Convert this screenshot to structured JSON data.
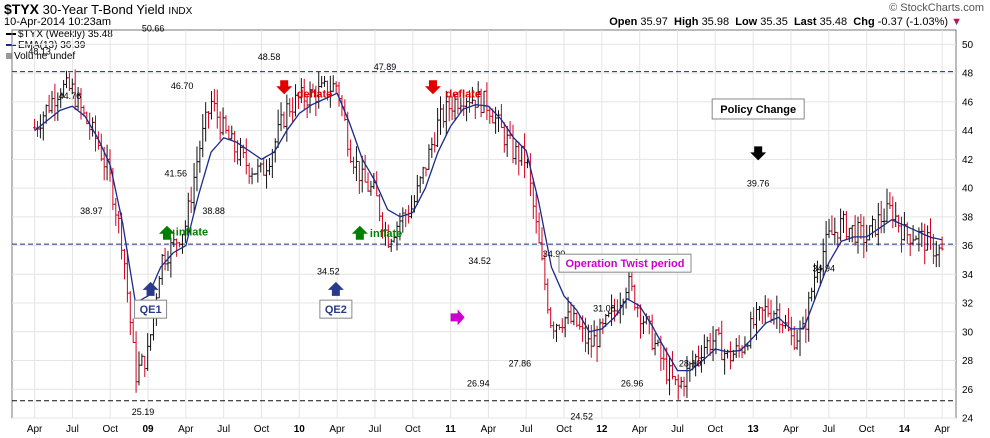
{
  "header": {
    "symbol": "$TYX",
    "description": "30-Year T-Bond Yield",
    "exchange": "INDX",
    "date": "10-Apr-2014 10:23am",
    "copyright": "© StockCharts.com",
    "open_label": "Open",
    "open": "35.97",
    "high_label": "High",
    "high": "35.98",
    "low_label": "Low",
    "low": "35.35",
    "last_label": "Last",
    "last": "35.48",
    "chg_label": "Chg",
    "chg": "-0.37 (-1.03%)"
  },
  "legend": {
    "item1": "$TYX (Weekly) 35.48",
    "item2": "EMA(13) 36.39",
    "item3": "Volume undef"
  },
  "colors": {
    "up": "#111111",
    "down": "#d00020",
    "ema": "#1a2a8a",
    "reference": "#1a2a8a",
    "deflate": "#e00000",
    "inflate": "#008000",
    "qe": "#2a3a8a",
    "twist": "#cc00cc"
  },
  "chart_data": {
    "type": "line",
    "title": "$TYX 30-Year T-Bond Yield INDX",
    "xlabel": "",
    "ylabel": "",
    "ylim": [
      24,
      51
    ],
    "y_ticks": [
      24,
      26,
      28,
      30,
      32,
      34,
      36,
      38,
      40,
      42,
      44,
      46,
      48,
      50
    ],
    "x_ticks": [
      "Apr",
      "Jul",
      "Oct",
      "09",
      "Apr",
      "Jul",
      "Oct",
      "10",
      "Apr",
      "Jul",
      "Oct",
      "11",
      "Apr",
      "Jul",
      "Oct",
      "12",
      "Apr",
      "Jul",
      "Oct",
      "13",
      "Apr",
      "Jul",
      "Oct",
      "14",
      "Apr"
    ],
    "reference_lines": [
      48.1,
      36.1,
      25.2
    ],
    "series": [
      {
        "name": "$TYX (Weekly)",
        "x": [
          "2008-04",
          "2008-06",
          "2008-07",
          "2008-08",
          "2008-09",
          "2008-10",
          "2008-11",
          "2008-12",
          "2009-01",
          "2009-02",
          "2009-03",
          "2009-04",
          "2009-05",
          "2009-06",
          "2009-07",
          "2009-08",
          "2009-09",
          "2009-10",
          "2009-11",
          "2009-12",
          "2010-01",
          "2010-02",
          "2010-03",
          "2010-04",
          "2010-05",
          "2010-06",
          "2010-07",
          "2010-08",
          "2010-09",
          "2010-10",
          "2010-11",
          "2010-12",
          "2011-01",
          "2011-02",
          "2011-03",
          "2011-04",
          "2011-05",
          "2011-06",
          "2011-07",
          "2011-08",
          "2011-09",
          "2011-10",
          "2011-11",
          "2011-12",
          "2012-01",
          "2012-02",
          "2012-03",
          "2012-04",
          "2012-05",
          "2012-06",
          "2012-07",
          "2012-08",
          "2012-09",
          "2012-10",
          "2012-11",
          "2012-12",
          "2013-01",
          "2013-02",
          "2013-03",
          "2013-04",
          "2013-05",
          "2013-06",
          "2013-07",
          "2013-08",
          "2013-09",
          "2013-10",
          "2013-11",
          "2013-12",
          "2014-01",
          "2014-02",
          "2014-03",
          "2014-04"
        ],
        "values": [
          44.2,
          47.0,
          46.8,
          44.8,
          43.2,
          40.6,
          36.0,
          27.0,
          28.5,
          35.0,
          36.0,
          37.5,
          42.5,
          46.0,
          44.0,
          42.5,
          41.5,
          41.0,
          43.0,
          45.5,
          46.2,
          46.5,
          46.8,
          47.2,
          42.8,
          40.5,
          39.6,
          36.5,
          37.8,
          38.7,
          41.5,
          44.5,
          45.8,
          46.5,
          46.2,
          45.8,
          44.0,
          42.5,
          42.0,
          36.0,
          30.5,
          31.0,
          30.5,
          29.0,
          30.0,
          31.5,
          33.5,
          31.5,
          29.5,
          27.5,
          26.0,
          27.5,
          29.0,
          29.5,
          28.2,
          28.8,
          30.5,
          31.5,
          31.5,
          29.5,
          30.0,
          34.5,
          36.5,
          37.5,
          37.0,
          36.5,
          37.8,
          38.5,
          36.8,
          36.8,
          36.0,
          35.5
        ]
      },
      {
        "name": "EMA(13)",
        "x": [
          "2008-04",
          "2008-06",
          "2008-07",
          "2008-08",
          "2008-09",
          "2008-10",
          "2008-11",
          "2008-12",
          "2009-01",
          "2009-02",
          "2009-03",
          "2009-04",
          "2009-05",
          "2009-06",
          "2009-07",
          "2009-08",
          "2009-09",
          "2009-10",
          "2009-11",
          "2009-12",
          "2010-01",
          "2010-02",
          "2010-03",
          "2010-04",
          "2010-05",
          "2010-06",
          "2010-07",
          "2010-08",
          "2010-09",
          "2010-10",
          "2010-11",
          "2010-12",
          "2011-01",
          "2011-02",
          "2011-03",
          "2011-04",
          "2011-05",
          "2011-06",
          "2011-07",
          "2011-08",
          "2011-09",
          "2011-10",
          "2011-11",
          "2011-12",
          "2012-01",
          "2012-02",
          "2012-03",
          "2012-04",
          "2012-05",
          "2012-06",
          "2012-07",
          "2012-08",
          "2012-09",
          "2012-10",
          "2012-11",
          "2012-12",
          "2013-01",
          "2013-02",
          "2013-03",
          "2013-04",
          "2013-05",
          "2013-06",
          "2013-07",
          "2013-08",
          "2013-09",
          "2013-10",
          "2013-11",
          "2013-12",
          "2014-01",
          "2014-02",
          "2014-03",
          "2014-04"
        ],
        "values": [
          44.0,
          45.4,
          45.7,
          45.0,
          43.5,
          41.6,
          37.5,
          32.0,
          32.5,
          34.5,
          35.5,
          36.0,
          39.5,
          42.5,
          43.5,
          43.2,
          42.6,
          42.0,
          42.5,
          44.0,
          45.2,
          45.8,
          46.2,
          46.6,
          44.5,
          42.0,
          40.5,
          38.5,
          38.0,
          38.3,
          40.0,
          42.5,
          44.3,
          45.5,
          45.8,
          45.7,
          44.8,
          43.5,
          42.6,
          39.0,
          34.5,
          32.5,
          31.5,
          30.0,
          30.2,
          31.0,
          32.3,
          31.8,
          30.4,
          28.8,
          27.3,
          27.3,
          28.0,
          28.8,
          28.6,
          28.7,
          29.6,
          30.6,
          31.0,
          30.2,
          30.2,
          32.5,
          34.8,
          36.3,
          36.6,
          36.6,
          37.2,
          37.8,
          37.4,
          37.0,
          36.6,
          36.4
        ]
      }
    ],
    "data_labels": [
      "48.13",
      "44.76",
      "38.97",
      "25.19",
      "50.66",
      "46.70",
      "41.56",
      "38.88",
      "48.58",
      "34.52",
      "47.89",
      "34.52",
      "26.94",
      "27.86",
      "34.90",
      "24.52",
      "31.08",
      "26.96",
      "28.10",
      "39.76",
      "34.94"
    ],
    "annotations": [
      {
        "text": "deflate",
        "kind": "deflate"
      },
      {
        "text": "deflate",
        "kind": "deflate"
      },
      {
        "text": "inflate",
        "kind": "inflate"
      },
      {
        "text": "inflate",
        "kind": "inflate"
      },
      {
        "text": "QE1",
        "kind": "qe"
      },
      {
        "text": "QE2",
        "kind": "qe"
      },
      {
        "text": "Operation Twist period",
        "kind": "twist"
      },
      {
        "text": "Policy Change",
        "kind": "policy"
      }
    ]
  }
}
